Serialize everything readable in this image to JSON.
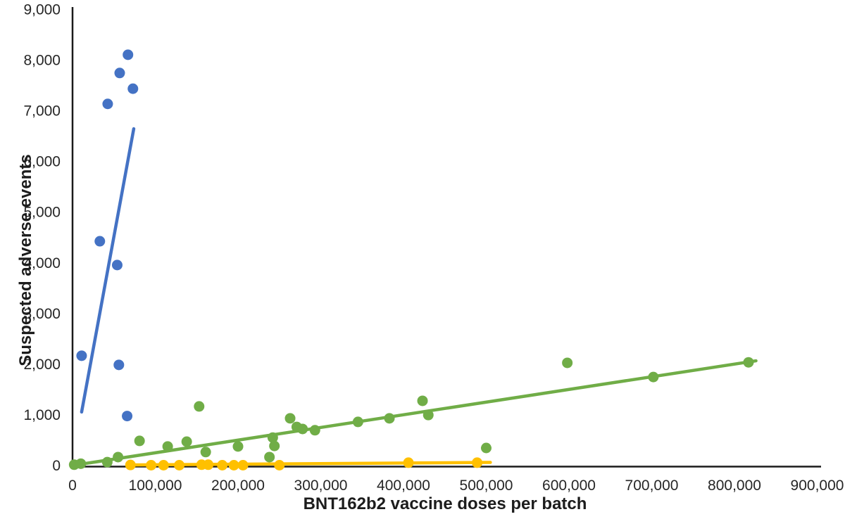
{
  "chart_data": {
    "type": "scatter",
    "title": "",
    "xlabel": "BNT162b2 vaccine doses per batch",
    "ylabel": "Suspected adverse events",
    "xlim": [
      0,
      900000
    ],
    "ylim": [
      0,
      9000
    ],
    "grid": false,
    "legend": "none",
    "x_ticks": {
      "values": [
        0,
        100000,
        200000,
        300000,
        400000,
        500000,
        600000,
        700000,
        800000,
        900000
      ],
      "labels": [
        "0",
        "100,000",
        "200,000",
        "300,000",
        "400,000",
        "500,000",
        "600,000",
        "700,000",
        "800,000",
        "900,000"
      ]
    },
    "y_ticks": {
      "values": [
        0,
        1000,
        2000,
        3000,
        4000,
        5000,
        6000,
        7000,
        8000,
        9000
      ],
      "labels": [
        "0",
        "1,000",
        "2,000",
        "3,000",
        "4,000",
        "5,000",
        "6,000",
        "7,000",
        "8,000",
        "9,000"
      ]
    },
    "axis_color": "#1a1a1a",
    "series": [
      {
        "name": "blue",
        "color": "#4472C4",
        "marker_radius": 7.5,
        "points": [
          [
            11000,
            2160
          ],
          [
            33000,
            4420
          ],
          [
            42500,
            7130
          ],
          [
            54000,
            3950
          ],
          [
            56000,
            1980
          ],
          [
            57000,
            7740
          ],
          [
            66000,
            970
          ],
          [
            67000,
            8100
          ],
          [
            73000,
            7430
          ]
        ],
        "trendline": [
          [
            11000,
            1050
          ],
          [
            74000,
            6640
          ]
        ]
      },
      {
        "name": "green",
        "color": "#70AD47",
        "marker_radius": 7.5,
        "points": [
          [
            2000,
            10
          ],
          [
            10000,
            30
          ],
          [
            42000,
            60
          ],
          [
            55000,
            160
          ],
          [
            81000,
            480
          ],
          [
            115000,
            370
          ],
          [
            138000,
            465
          ],
          [
            153000,
            1160
          ],
          [
            161000,
            260
          ],
          [
            200000,
            370
          ],
          [
            238000,
            160
          ],
          [
            242000,
            545
          ],
          [
            244000,
            380
          ],
          [
            263000,
            925
          ],
          [
            271000,
            755
          ],
          [
            278000,
            715
          ],
          [
            293000,
            690
          ],
          [
            345000,
            855
          ],
          [
            383000,
            925
          ],
          [
            423000,
            1270
          ],
          [
            430000,
            990
          ],
          [
            500000,
            340
          ],
          [
            598000,
            2020
          ],
          [
            702000,
            1740
          ],
          [
            817000,
            2030
          ]
        ],
        "trendline": [
          [
            6000,
            10
          ],
          [
            826000,
            2060
          ]
        ]
      },
      {
        "name": "yellow",
        "color": "#FFC000",
        "marker_radius": 7.5,
        "points": [
          [
            70000,
            5
          ],
          [
            95000,
            0
          ],
          [
            110000,
            0
          ],
          [
            129000,
            0
          ],
          [
            156000,
            10
          ],
          [
            164000,
            10
          ],
          [
            181000,
            0
          ],
          [
            195000,
            0
          ],
          [
            206000,
            0
          ],
          [
            250000,
            0
          ],
          [
            406000,
            50
          ],
          [
            489000,
            50
          ]
        ],
        "trendline": [
          [
            68000,
            5
          ],
          [
            505000,
            55
          ]
        ]
      }
    ]
  }
}
